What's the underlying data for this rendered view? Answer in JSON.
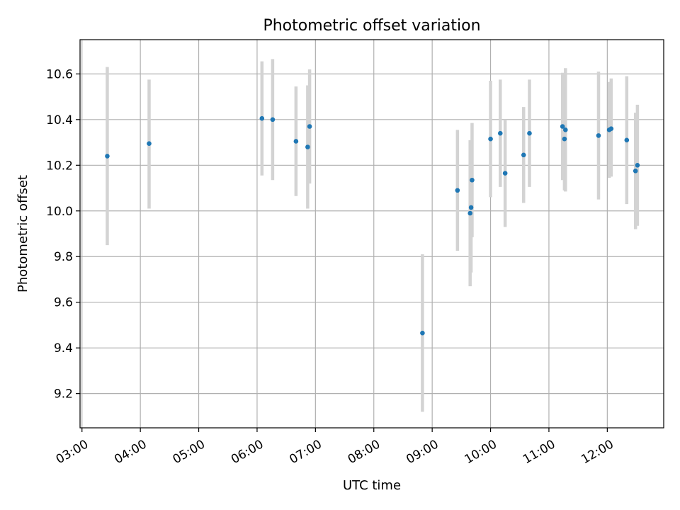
{
  "chart_data": {
    "type": "scatter",
    "title": "Photometric offset variation",
    "xlabel": "UTC time",
    "ylabel": "Photometric offset",
    "x_axis_type": "time",
    "xlim": [
      "02:58",
      "12:58"
    ],
    "ylim": [
      9.05,
      10.75
    ],
    "x_ticks": [
      "03:00",
      "04:00",
      "05:00",
      "06:00",
      "07:00",
      "08:00",
      "09:00",
      "10:00",
      "11:00",
      "12:00"
    ],
    "y_ticks": [
      9.2,
      9.4,
      9.6,
      9.8,
      10.0,
      10.2,
      10.4,
      10.6
    ],
    "y_tick_labels": [
      "9.2",
      "9.4",
      "9.6",
      "9.8",
      "10.0",
      "10.2",
      "10.4",
      "10.6"
    ],
    "grid": true,
    "legend": "none",
    "series": [
      {
        "marker_color": "#1f77b4",
        "errorbar_color": "#d3d3d3",
        "points": [
          {
            "x": "03:26",
            "y": 10.24,
            "low": 9.85,
            "high": 10.63
          },
          {
            "x": "04:09",
            "y": 10.295,
            "low": 10.01,
            "high": 10.575
          },
          {
            "x": "06:05",
            "y": 10.405,
            "low": 10.155,
            "high": 10.655
          },
          {
            "x": "06:16",
            "y": 10.4,
            "low": 10.135,
            "high": 10.665
          },
          {
            "x": "06:40",
            "y": 10.305,
            "low": 10.065,
            "high": 10.545
          },
          {
            "x": "06:52",
            "y": 10.28,
            "low": 10.01,
            "high": 10.55
          },
          {
            "x": "06:54",
            "y": 10.37,
            "low": 10.12,
            "high": 10.62
          },
          {
            "x": "08:50",
            "y": 9.465,
            "low": 9.12,
            "high": 9.81
          },
          {
            "x": "09:26",
            "y": 10.09,
            "low": 9.825,
            "high": 10.355
          },
          {
            "x": "09:39",
            "y": 9.99,
            "low": 9.67,
            "high": 10.31
          },
          {
            "x": "09:40",
            "y": 10.015,
            "low": 9.73,
            "high": 10.3
          },
          {
            "x": "09:41",
            "y": 10.135,
            "low": 9.885,
            "high": 10.385
          },
          {
            "x": "10:00",
            "y": 10.315,
            "low": 10.06,
            "high": 10.57
          },
          {
            "x": "10:10",
            "y": 10.34,
            "low": 10.105,
            "high": 10.575
          },
          {
            "x": "10:15",
            "y": 10.165,
            "low": 9.93,
            "high": 10.4
          },
          {
            "x": "10:34",
            "y": 10.245,
            "low": 10.035,
            "high": 10.455
          },
          {
            "x": "10:40",
            "y": 10.34,
            "low": 10.105,
            "high": 10.575
          },
          {
            "x": "11:14",
            "y": 10.37,
            "low": 10.135,
            "high": 10.605
          },
          {
            "x": "11:16",
            "y": 10.315,
            "low": 10.09,
            "high": 10.545
          },
          {
            "x": "11:17",
            "y": 10.355,
            "low": 10.085,
            "high": 10.625
          },
          {
            "x": "11:51",
            "y": 10.33,
            "low": 10.05,
            "high": 10.61
          },
          {
            "x": "12:02",
            "y": 10.355,
            "low": 10.145,
            "high": 10.565
          },
          {
            "x": "12:04",
            "y": 10.36,
            "low": 10.15,
            "high": 10.58
          },
          {
            "x": "12:20",
            "y": 10.31,
            "low": 10.03,
            "high": 10.59
          },
          {
            "x": "12:29",
            "y": 10.175,
            "low": 9.92,
            "high": 10.43
          },
          {
            "x": "12:31",
            "y": 10.2,
            "low": 9.935,
            "high": 10.465
          }
        ]
      }
    ]
  }
}
